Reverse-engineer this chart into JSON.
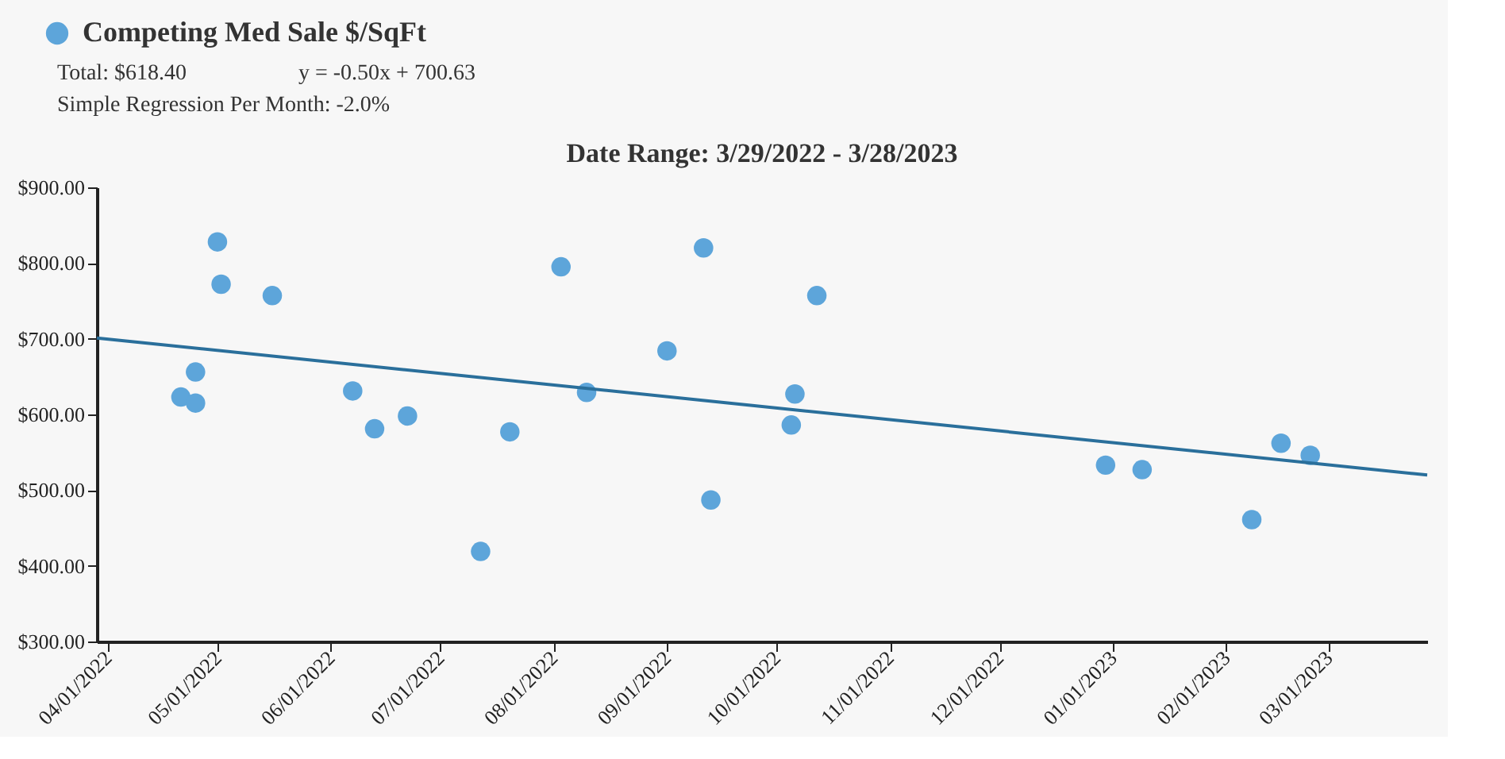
{
  "chart_data": {
    "type": "scatter",
    "title": "Date Range: 3/29/2022 - 3/28/2023",
    "annotations": [
      "Total: $618.40",
      "y = -0.50x + 700.63",
      "Simple Regression Per Month: -2.0%"
    ],
    "xlim": [
      "2022-03-29",
      "2023-03-28"
    ],
    "xticks": [
      {
        "value": "2022-04-01",
        "label": "04/01/2022"
      },
      {
        "value": "2022-05-01",
        "label": "05/01/2022"
      },
      {
        "value": "2022-06-01",
        "label": "06/01/2022"
      },
      {
        "value": "2022-07-01",
        "label": "07/01/2022"
      },
      {
        "value": "2022-08-01",
        "label": "08/01/2022"
      },
      {
        "value": "2022-09-01",
        "label": "09/01/2022"
      },
      {
        "value": "2022-10-01",
        "label": "10/01/2022"
      },
      {
        "value": "2022-11-01",
        "label": "11/01/2022"
      },
      {
        "value": "2022-12-01",
        "label": "12/01/2022"
      },
      {
        "value": "2023-01-01",
        "label": "01/01/2023"
      },
      {
        "value": "2023-02-01",
        "label": "02/01/2023"
      },
      {
        "value": "2023-03-01",
        "label": "03/01/2023"
      }
    ],
    "ylim": [
      300,
      900
    ],
    "yticks": [
      {
        "value": 300,
        "label": "$300.00"
      },
      {
        "value": 400,
        "label": "$400.00"
      },
      {
        "value": 500,
        "label": "$500.00"
      },
      {
        "value": 600,
        "label": "$600.00"
      },
      {
        "value": 700,
        "label": "$700.00"
      },
      {
        "value": 800,
        "label": "$800.00"
      },
      {
        "value": 900,
        "label": "$900.00"
      }
    ],
    "grid": false,
    "legend": "top left",
    "series": [
      {
        "name": "Competing Med Sale $/SqFt",
        "type": "scatter",
        "marker": "circle",
        "color": "#5da5da",
        "x": [
          "2022-04-21",
          "2022-04-25",
          "2022-04-25",
          "2022-05-01",
          "2022-05-02",
          "2022-05-16",
          "2022-06-07",
          "2022-06-13",
          "2022-06-22",
          "2022-07-12",
          "2022-07-20",
          "2022-08-03",
          "2022-08-10",
          "2022-09-01",
          "2022-09-11",
          "2022-09-13",
          "2022-10-05",
          "2022-10-06",
          "2022-10-12",
          "2022-12-30",
          "2023-01-09",
          "2023-02-08",
          "2023-02-16",
          "2023-02-24"
        ],
        "values": [
          623,
          656,
          615,
          828,
          772,
          757,
          631,
          581,
          598,
          419,
          577,
          795,
          629,
          684,
          820,
          487,
          586,
          627,
          757,
          533,
          527,
          461,
          562,
          546
        ]
      },
      {
        "type": "line",
        "marker": "none",
        "color": "#2a6f9b",
        "line_style": "solid",
        "x": [
          "2022-03-29",
          "2023-03-28"
        ],
        "values": [
          701,
          520
        ]
      }
    ]
  }
}
